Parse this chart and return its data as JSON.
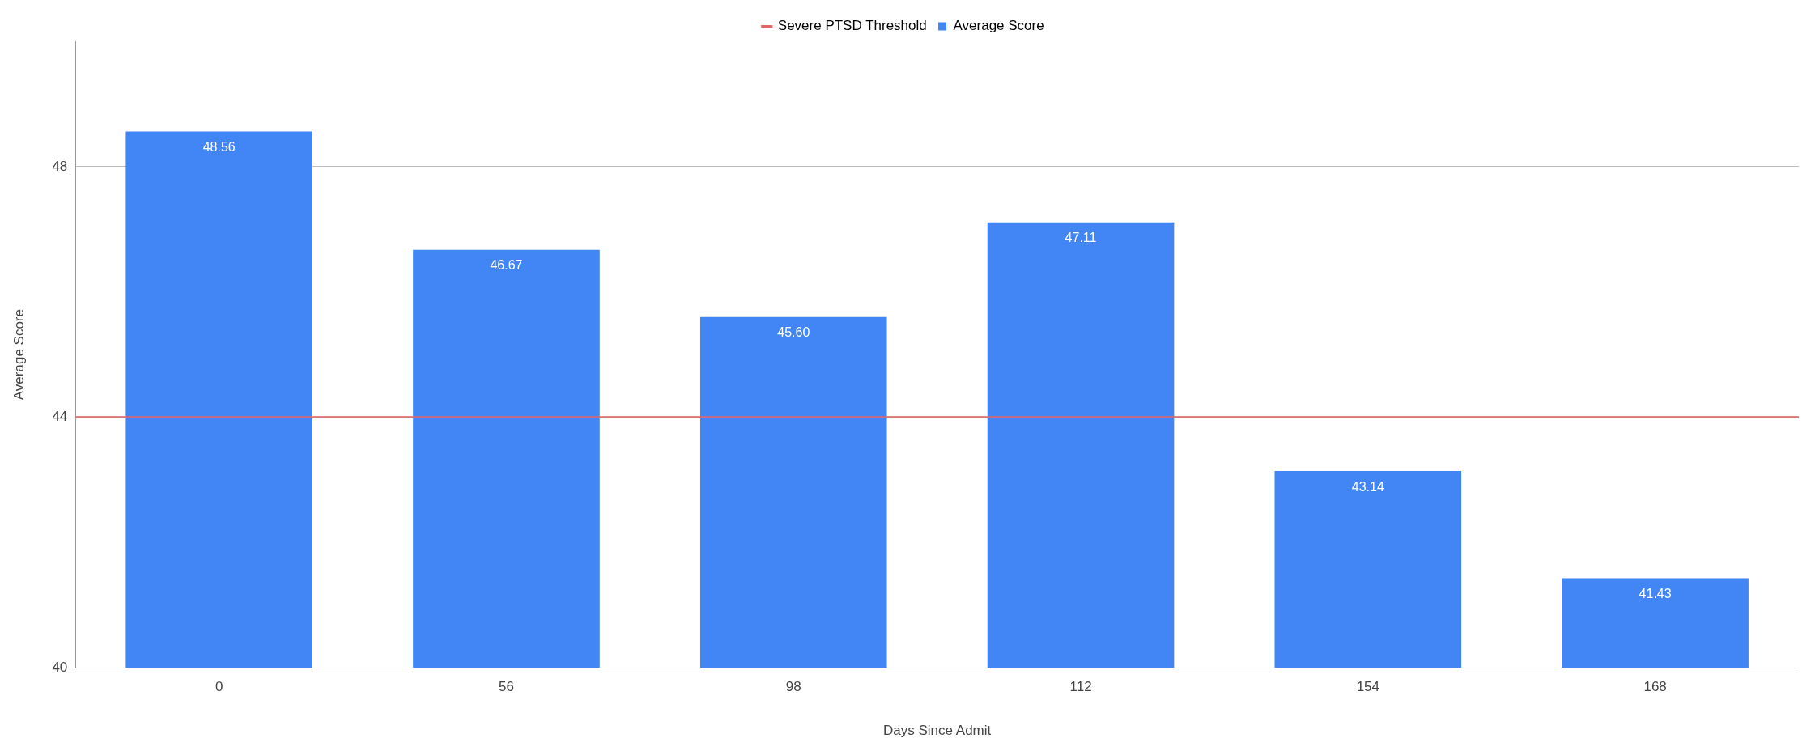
{
  "chart_data": {
    "type": "bar",
    "xlabel": "Days Since Admit",
    "ylabel": "Average Score",
    "categories": [
      "0",
      "56",
      "98",
      "112",
      "154",
      "168"
    ],
    "series": [
      {
        "name": "Average Score",
        "color": "#4285f4",
        "values": [
          48.56,
          46.67,
          45.6,
          47.11,
          43.14,
          41.43
        ]
      }
    ],
    "value_labels": [
      "48.56",
      "46.67",
      "45.60",
      "47.11",
      "43.14",
      "41.43"
    ],
    "ref_lines": [
      {
        "axis": "y",
        "value": 44,
        "label": "Severe PTSD Threshold",
        "color": "#e06666"
      }
    ],
    "ylim": [
      40,
      50
    ],
    "yticks": [
      40,
      44,
      48
    ],
    "grid": "y",
    "legend": "top"
  }
}
